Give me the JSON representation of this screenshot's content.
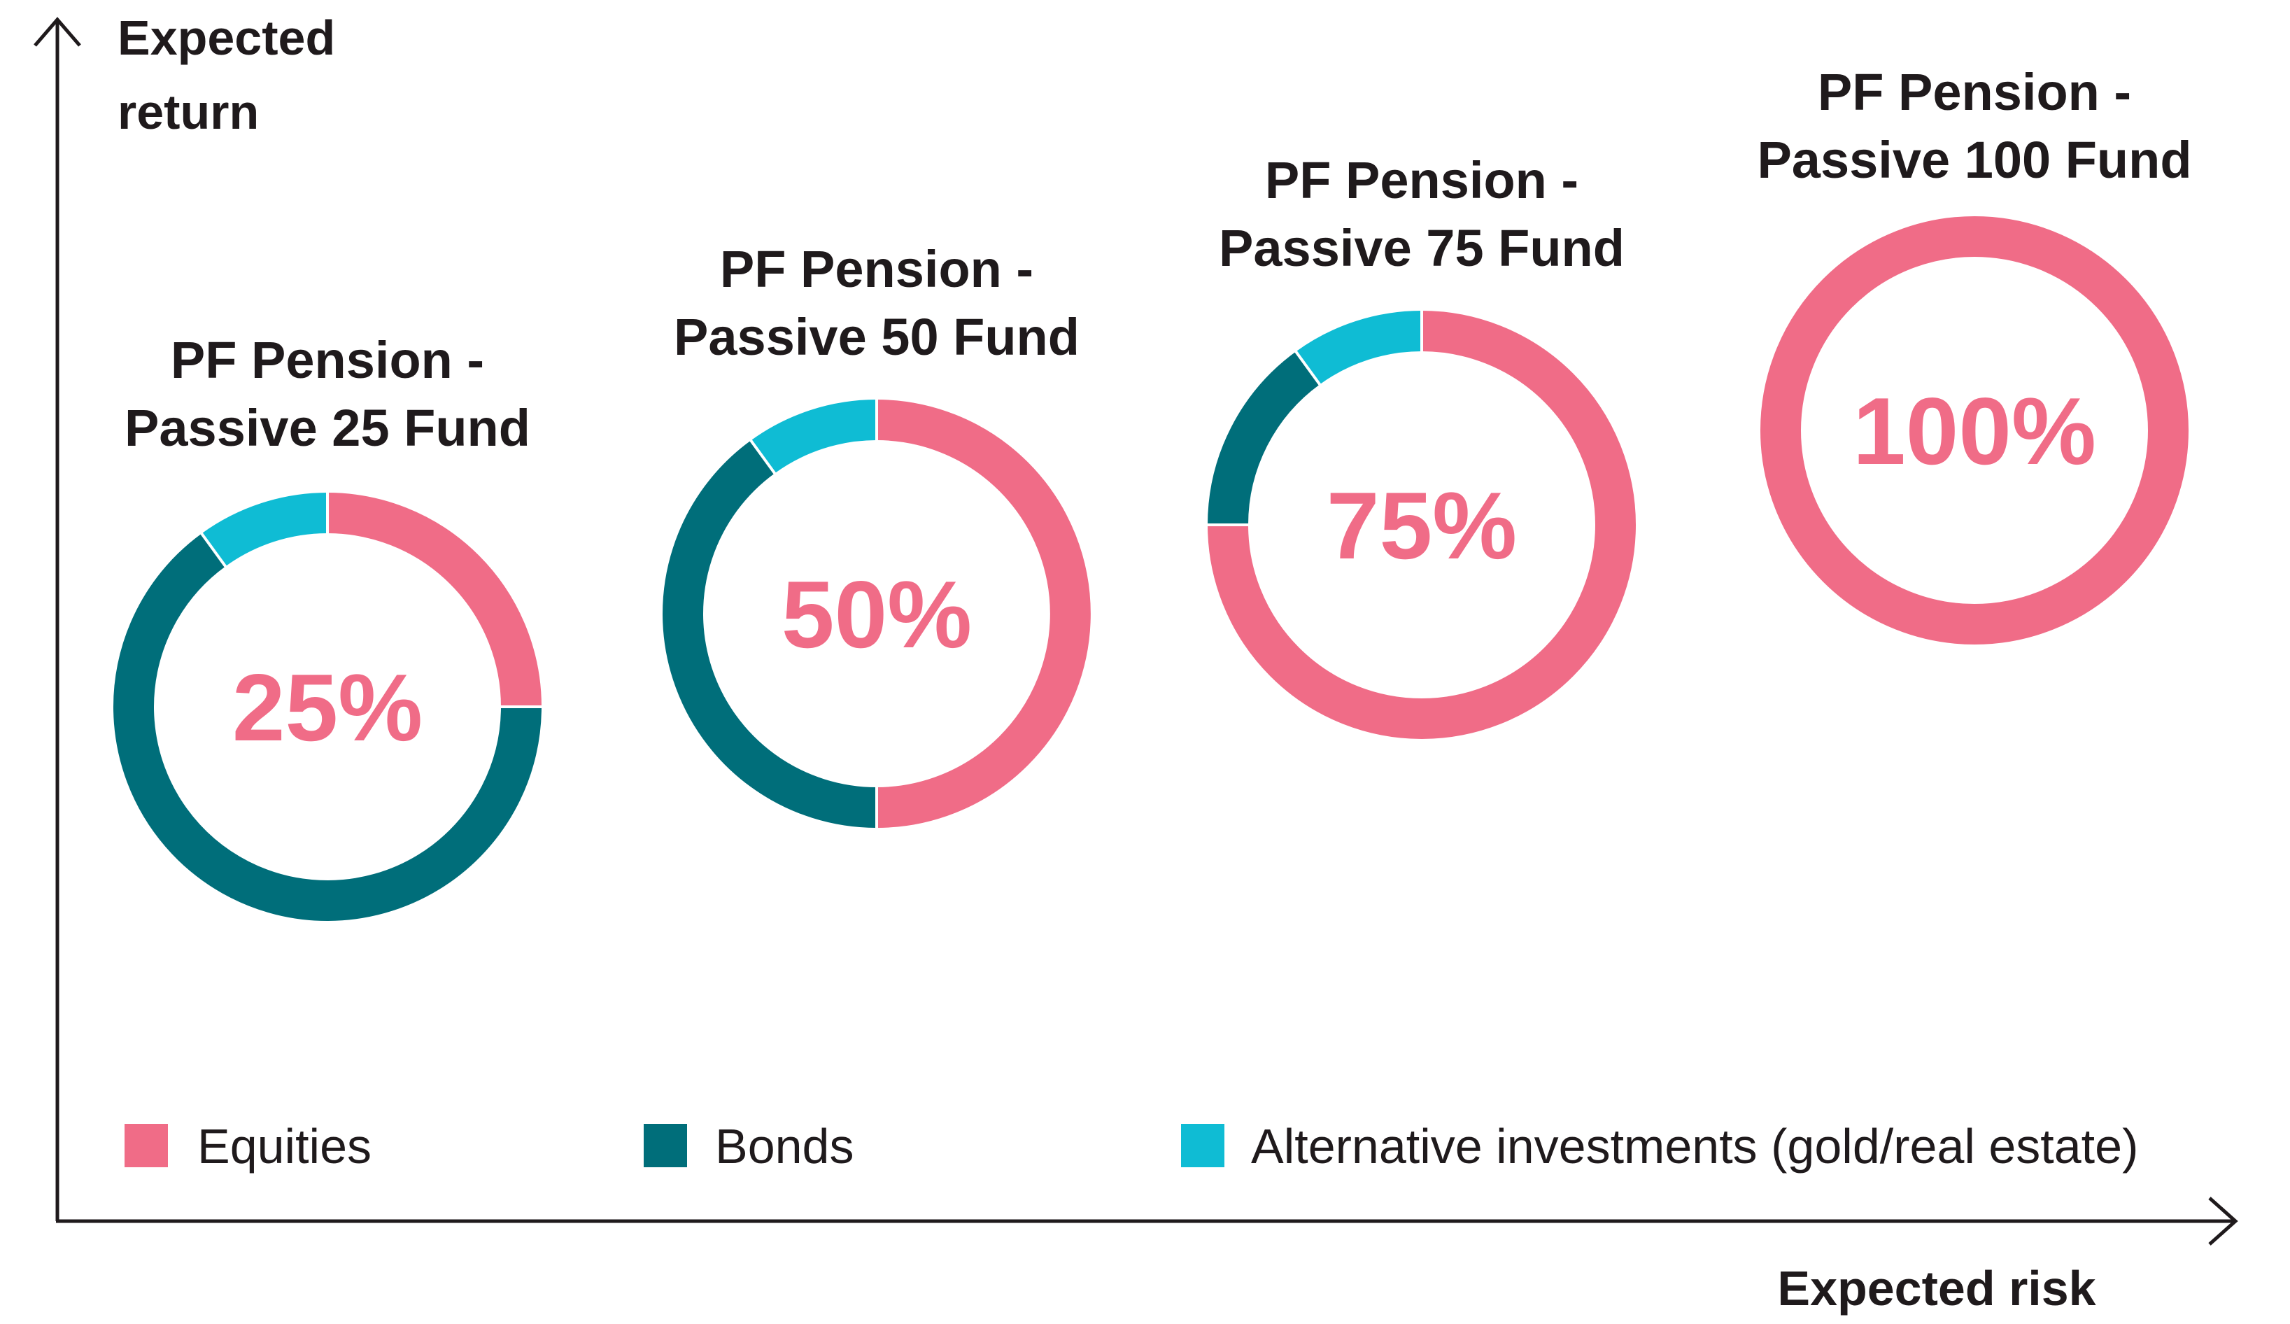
{
  "chart_data": {
    "type": "pie",
    "variant": "donut",
    "xlabel": "Expected risk",
    "ylabel_lines": [
      "Expected",
      "return"
    ],
    "colors": {
      "equities": "#f06c87",
      "bonds": "#006e7a",
      "alternatives": "#0fbcd4",
      "axis": "#1f1a1c",
      "text": "#1f1a1c"
    },
    "legend": {
      "placement": "bottom",
      "entries": [
        {
          "key": "equities",
          "label": "Equities"
        },
        {
          "key": "bonds",
          "label": "Bonds"
        },
        {
          "key": "alternatives",
          "label": "Alternative investments (gold/real estate)"
        }
      ]
    },
    "funds": [
      {
        "title_lines": [
          "PF Pension -",
          "Passive 25 Fund"
        ],
        "center_label": "25%",
        "slices": [
          {
            "key": "equities",
            "value": 25
          },
          {
            "key": "bonds",
            "value": 65
          },
          {
            "key": "alternatives",
            "value": 10
          }
        ]
      },
      {
        "title_lines": [
          "PF Pension -",
          "Passive 50 Fund"
        ],
        "center_label": "50%",
        "slices": [
          {
            "key": "equities",
            "value": 50
          },
          {
            "key": "bonds",
            "value": 40
          },
          {
            "key": "alternatives",
            "value": 10
          }
        ]
      },
      {
        "title_lines": [
          "PF Pension -",
          "Passive 75 Fund"
        ],
        "center_label": "75%",
        "slices": [
          {
            "key": "equities",
            "value": 75
          },
          {
            "key": "bonds",
            "value": 15
          },
          {
            "key": "alternatives",
            "value": 10
          }
        ]
      },
      {
        "title_lines": [
          "PF Pension -",
          "Passive 100 Fund"
        ],
        "center_label": "100%",
        "slices": [
          {
            "key": "equities",
            "value": 100
          }
        ]
      }
    ]
  }
}
